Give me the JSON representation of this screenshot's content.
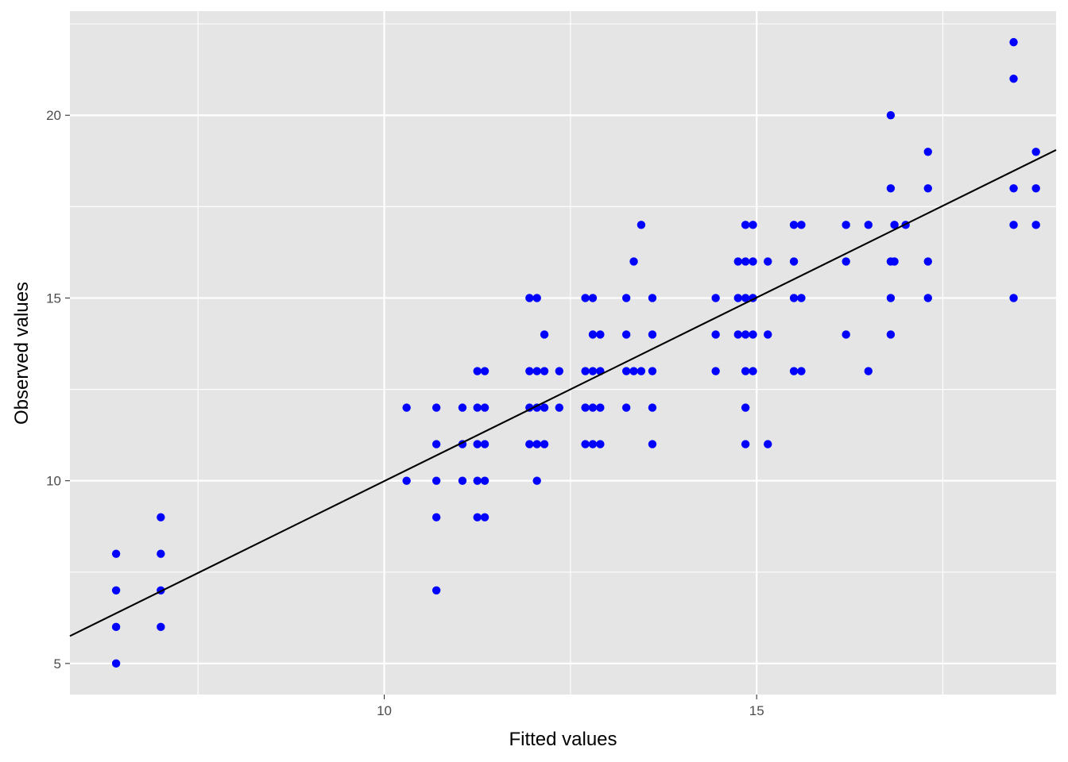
{
  "chart_data": {
    "type": "scatter",
    "title": "",
    "xlabel": "Fitted values",
    "ylabel": "Observed values",
    "xlim": [
      5.78,
      19.02
    ],
    "ylim": [
      4.15,
      22.85
    ],
    "x_ticks": [
      10,
      15
    ],
    "y_ticks": [
      5,
      10,
      15,
      20
    ],
    "grid": true,
    "point_color": "#0000ff",
    "line_color": "#000000",
    "panel_background": "#e5e5e5",
    "grid_color": "#ffffff",
    "fit_line": {
      "x": [
        5.78,
        19.02
      ],
      "y": [
        5.75,
        19.05
      ]
    },
    "points": [
      [
        6.4,
        8
      ],
      [
        6.4,
        7
      ],
      [
        6.4,
        6
      ],
      [
        6.4,
        5
      ],
      [
        7.0,
        9
      ],
      [
        7.0,
        8
      ],
      [
        7.0,
        7
      ],
      [
        7.0,
        6
      ],
      [
        10.3,
        12
      ],
      [
        10.3,
        10
      ],
      [
        10.7,
        12
      ],
      [
        10.7,
        11
      ],
      [
        10.7,
        10
      ],
      [
        10.7,
        9
      ],
      [
        10.7,
        7
      ],
      [
        11.05,
        12
      ],
      [
        11.05,
        11
      ],
      [
        11.05,
        10
      ],
      [
        11.25,
        13
      ],
      [
        11.25,
        12
      ],
      [
        11.25,
        11
      ],
      [
        11.25,
        10
      ],
      [
        11.25,
        9
      ],
      [
        11.35,
        13
      ],
      [
        11.35,
        12
      ],
      [
        11.35,
        11
      ],
      [
        11.35,
        10
      ],
      [
        11.35,
        9
      ],
      [
        11.95,
        15
      ],
      [
        11.95,
        13
      ],
      [
        11.95,
        12
      ],
      [
        11.95,
        11
      ],
      [
        12.05,
        15
      ],
      [
        12.05,
        13
      ],
      [
        12.05,
        12
      ],
      [
        12.05,
        11
      ],
      [
        12.05,
        10
      ],
      [
        12.15,
        14
      ],
      [
        12.15,
        13
      ],
      [
        12.15,
        12
      ],
      [
        12.15,
        11
      ],
      [
        12.35,
        13
      ],
      [
        12.35,
        12
      ],
      [
        12.7,
        15
      ],
      [
        12.7,
        13
      ],
      [
        12.7,
        12
      ],
      [
        12.7,
        11
      ],
      [
        12.8,
        15
      ],
      [
        12.8,
        14
      ],
      [
        12.8,
        13
      ],
      [
        12.8,
        12
      ],
      [
        12.8,
        11
      ],
      [
        12.9,
        14
      ],
      [
        12.9,
        13
      ],
      [
        12.9,
        12
      ],
      [
        12.9,
        11
      ],
      [
        13.25,
        15
      ],
      [
        13.25,
        14
      ],
      [
        13.25,
        13
      ],
      [
        13.25,
        12
      ],
      [
        13.35,
        16
      ],
      [
        13.35,
        13
      ],
      [
        13.45,
        17
      ],
      [
        13.45,
        13
      ],
      [
        13.6,
        15
      ],
      [
        13.6,
        14
      ],
      [
        13.6,
        13
      ],
      [
        13.6,
        12
      ],
      [
        13.6,
        11
      ],
      [
        14.45,
        15
      ],
      [
        14.45,
        14
      ],
      [
        14.45,
        13
      ],
      [
        14.75,
        16
      ],
      [
        14.75,
        15
      ],
      [
        14.75,
        14
      ],
      [
        14.85,
        17
      ],
      [
        14.85,
        16
      ],
      [
        14.85,
        15
      ],
      [
        14.85,
        14
      ],
      [
        14.85,
        13
      ],
      [
        14.85,
        12
      ],
      [
        14.85,
        11
      ],
      [
        14.95,
        17
      ],
      [
        14.95,
        16
      ],
      [
        14.95,
        15
      ],
      [
        14.95,
        14
      ],
      [
        14.95,
        13
      ],
      [
        15.15,
        16
      ],
      [
        15.15,
        14
      ],
      [
        15.15,
        11
      ],
      [
        15.5,
        17
      ],
      [
        15.5,
        16
      ],
      [
        15.5,
        15
      ],
      [
        15.5,
        13
      ],
      [
        15.6,
        17
      ],
      [
        15.6,
        15
      ],
      [
        15.6,
        13
      ],
      [
        16.2,
        17
      ],
      [
        16.2,
        16
      ],
      [
        16.2,
        14
      ],
      [
        16.5,
        17
      ],
      [
        16.5,
        13
      ],
      [
        16.8,
        20
      ],
      [
        16.8,
        18
      ],
      [
        16.8,
        16
      ],
      [
        16.8,
        15
      ],
      [
        16.8,
        14
      ],
      [
        16.85,
        17
      ],
      [
        16.85,
        16
      ],
      [
        17.0,
        17
      ],
      [
        17.3,
        19
      ],
      [
        17.3,
        18
      ],
      [
        17.3,
        16
      ],
      [
        17.3,
        15
      ],
      [
        18.45,
        22
      ],
      [
        18.45,
        21
      ],
      [
        18.45,
        18
      ],
      [
        18.45,
        17
      ],
      [
        18.45,
        15
      ],
      [
        18.75,
        19
      ],
      [
        18.75,
        18
      ],
      [
        18.75,
        17
      ]
    ]
  }
}
